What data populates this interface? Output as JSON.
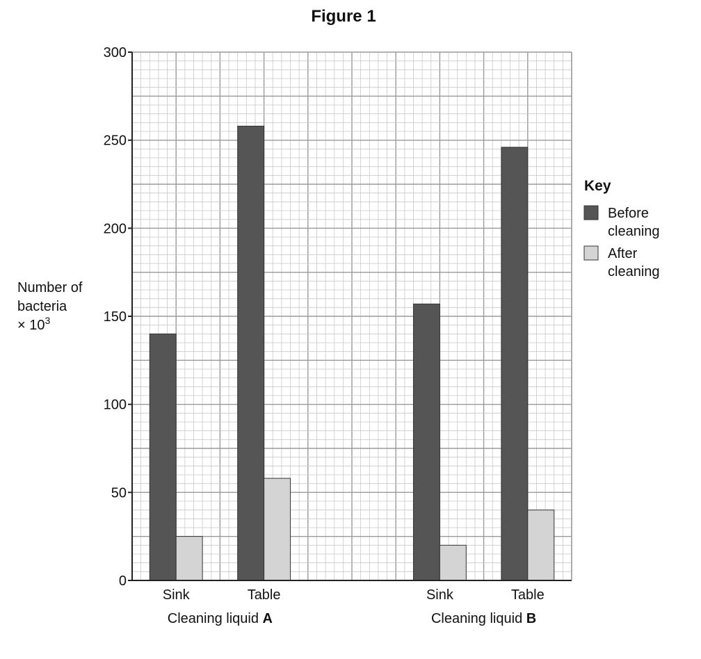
{
  "figure_title": "Figure 1",
  "colors": {
    "before": "#555555",
    "after": "#d4d4d4",
    "grid_minor": "#c8c8c8",
    "grid_major": "#9a9a9a",
    "axis": "#222222"
  },
  "chart_data": {
    "type": "bar",
    "title": "Figure 1",
    "ylabel_lines": [
      "Number of",
      "bacteria",
      "× 10"
    ],
    "ylabel_superscript": "3",
    "ylim": [
      0,
      300
    ],
    "yticks": [
      "0",
      "50",
      "100",
      "150",
      "200",
      "250",
      "300"
    ],
    "grid": true,
    "legend_position": "right",
    "groups": [
      {
        "label_prefix": "Cleaning liquid ",
        "label_bold": "A",
        "categories": [
          "Sink",
          "Table"
        ],
        "series": [
          {
            "name": "Before cleaning",
            "values": [
              140,
              258
            ]
          },
          {
            "name": "After cleaning",
            "values": [
              25,
              58
            ]
          }
        ]
      },
      {
        "label_prefix": "Cleaning liquid ",
        "label_bold": "B",
        "categories": [
          "Sink",
          "Table"
        ],
        "series": [
          {
            "name": "Before cleaning",
            "values": [
              157,
              246
            ]
          },
          {
            "name": "After cleaning",
            "values": [
              20,
              40
            ]
          }
        ]
      }
    ],
    "legend": {
      "title": "Key",
      "entries": [
        {
          "lines": [
            "Before",
            "cleaning"
          ],
          "color_key": "before"
        },
        {
          "lines": [
            "After",
            "cleaning"
          ],
          "color_key": "after"
        }
      ]
    }
  }
}
